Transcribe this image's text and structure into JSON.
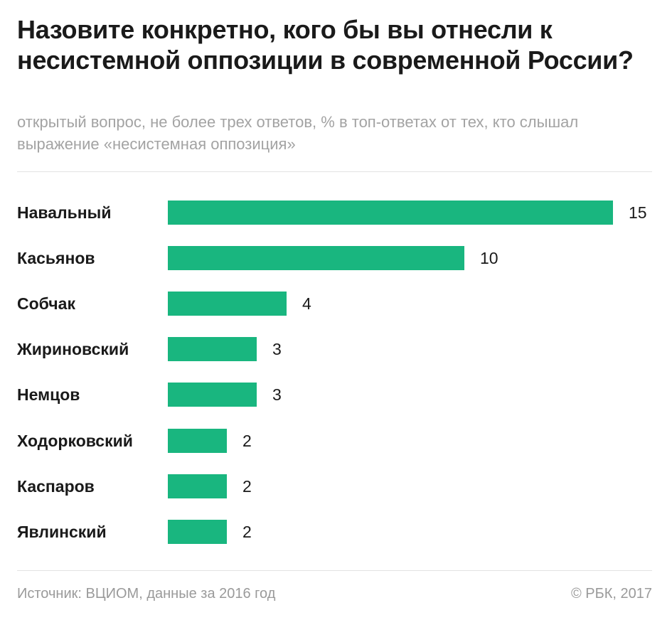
{
  "header": {
    "title": "Назовите конкретно, кого бы вы отнесли к несистемной оппозиции в современной России?",
    "subtitle": "открытый вопрос, не более трех ответов, % в топ-ответах от тех, кто слышал выражение «несистемная оппозиция»"
  },
  "chart_data": {
    "type": "bar",
    "orientation": "horizontal",
    "categories": [
      "Навальный",
      "Касьянов",
      "Собчак",
      "Жириновский",
      "Немцов",
      "Ходорковский",
      "Каспаров",
      "Явлинский"
    ],
    "values": [
      15,
      10,
      4,
      3,
      3,
      2,
      2,
      2
    ],
    "value_labels": [
      "15",
      "10",
      "4",
      "3",
      "3",
      "2",
      "2",
      "2"
    ],
    "title": "Назовите конкретно, кого бы вы отнесли к несистемной оппозиции в современной России?",
    "xlabel": "",
    "ylabel": "",
    "xlim": [
      0,
      15
    ],
    "grid": false,
    "bar_color": "#19b67f"
  },
  "footer": {
    "source": "Источник: ВЦИОМ, данные за 2016 год",
    "copyright": "© РБК, 2017"
  }
}
